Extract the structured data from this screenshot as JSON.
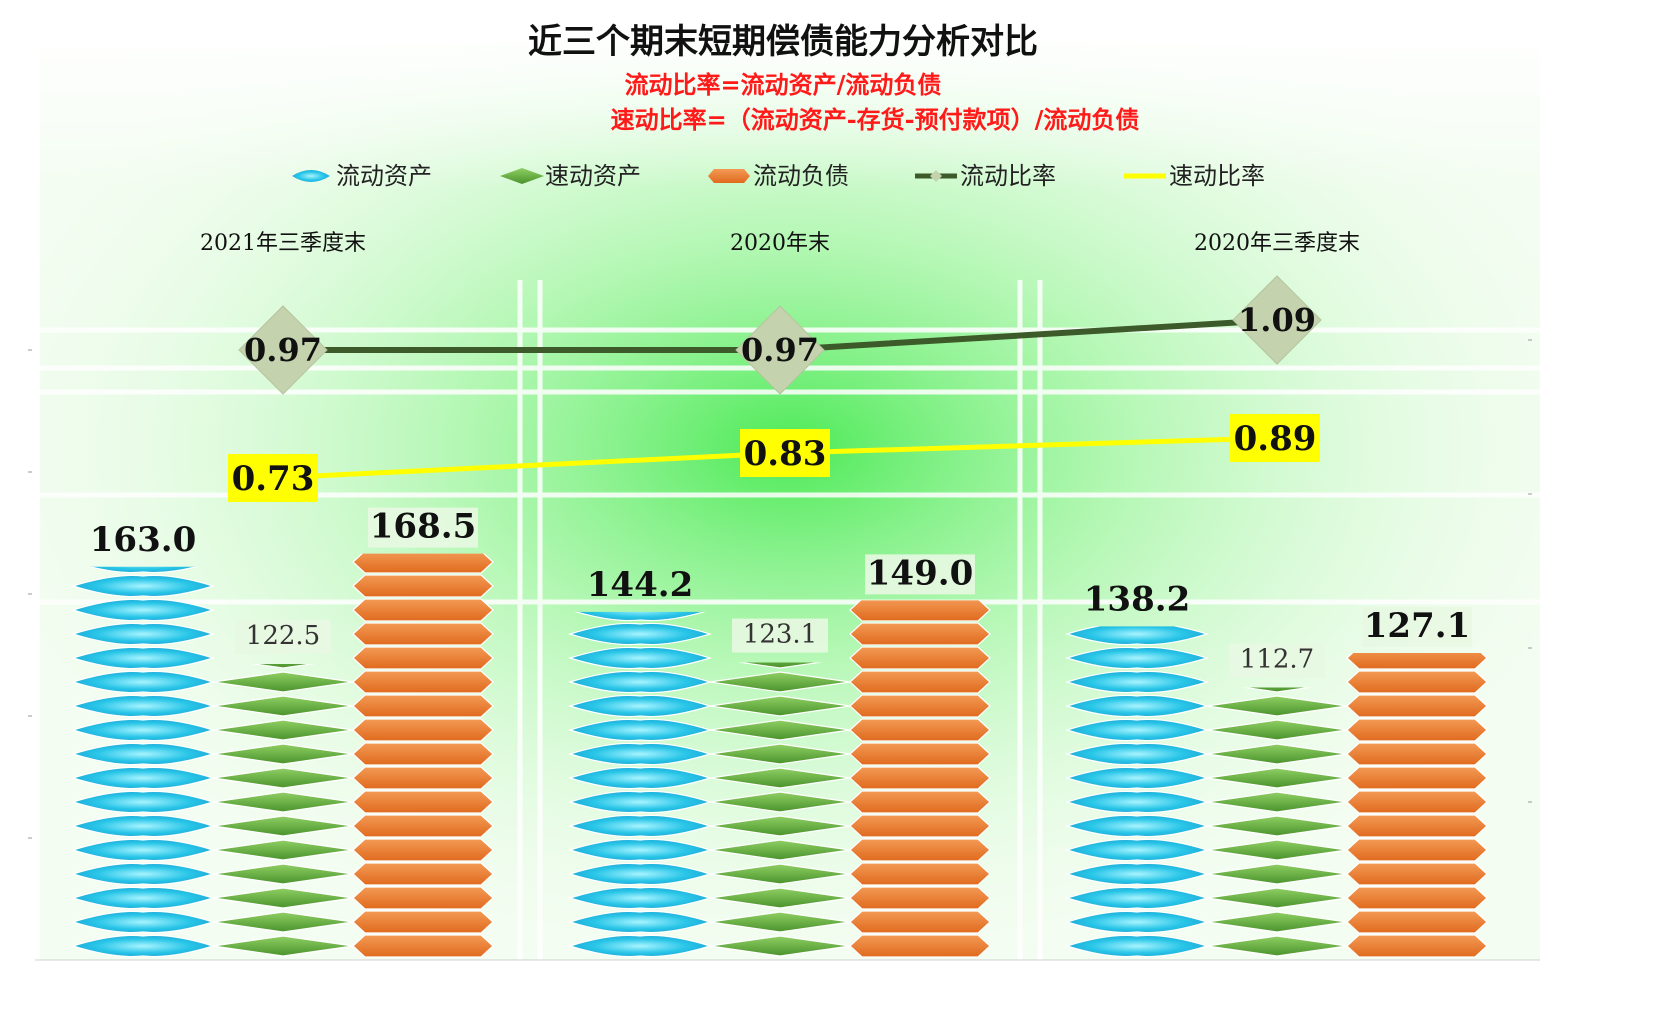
{
  "chart_data": {
    "type": "bar",
    "title": "近三个期末短期偿债能力分析对比",
    "formulas": [
      "流动比率=流动资产/流动负债",
      "速动比率=（流动资产-存货-预付款项）/流动负债"
    ],
    "categories": [
      "2021年三季度末",
      "2020年末",
      "2020年三季度末"
    ],
    "bar_series": [
      {
        "name": "流动资产",
        "values": [
          163.0,
          144.2,
          138.2
        ],
        "labels": [
          "163.0",
          "144.2",
          "138.2"
        ],
        "color": "#29C6E8",
        "shape": "lens"
      },
      {
        "name": "速动资产",
        "values": [
          122.5,
          123.1,
          112.7
        ],
        "labels": [
          "122.5",
          "123.1",
          "112.7"
        ],
        "color": "#5FA83A",
        "shape": "diamond"
      },
      {
        "name": "流动负债",
        "values": [
          168.5,
          149.0,
          127.1
        ],
        "labels": [
          "168.5",
          "149.0",
          "127.1"
        ],
        "color": "#ED7D31",
        "shape": "hexagon"
      }
    ],
    "line_series": [
      {
        "name": "流动比率",
        "values": [
          0.97,
          0.97,
          1.09
        ],
        "labels": [
          "0.97",
          "0.97",
          "1.09"
        ],
        "color": "#3D5A2A",
        "marker_fill": "#C4D3AE"
      },
      {
        "name": "速动比率",
        "values": [
          0.73,
          0.83,
          0.89
        ],
        "labels": [
          "0.73",
          "0.83",
          "0.89"
        ],
        "color": "#FFFF00",
        "marker_fill": "#FFFF00"
      }
    ],
    "bar_ylim": [
      0,
      330
    ],
    "line_ylim": [
      -0.4,
      1.3
    ],
    "legend_position": "top",
    "grid": false
  }
}
